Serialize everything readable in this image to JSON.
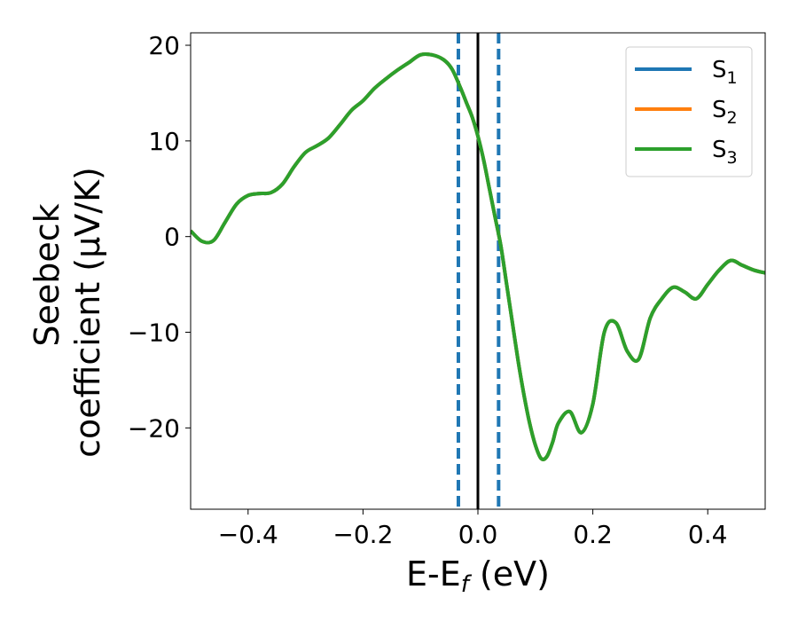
{
  "chart_data": {
    "type": "line",
    "xlabel": "E-E",
    "xlabel_sub": "f",
    "xlabel_unit": " (eV)",
    "ylabel_line1": "Seebeck",
    "ylabel_line2": "coefficient  (μV/K)",
    "xlim": [
      -0.5,
      0.5
    ],
    "ylim": [
      -28.5,
      21.3
    ],
    "xticks": [
      -0.4,
      -0.2,
      0.0,
      0.2,
      0.4
    ],
    "xtick_labels": [
      "−0.4",
      "−0.2",
      "0.0",
      "0.2",
      "0.4"
    ],
    "yticks": [
      20,
      10,
      0,
      -10,
      -20
    ],
    "ytick_labels": [
      "20",
      "10",
      "0",
      "−10",
      "−20"
    ],
    "grid": false,
    "legend_position": "top-right",
    "vertical_lines": [
      {
        "x": -0.034,
        "style": "dashed",
        "color": "#1f77b4"
      },
      {
        "x": 0.0,
        "style": "solid",
        "color": "#000000"
      },
      {
        "x": 0.036,
        "style": "dashed",
        "color": "#1f77b4"
      }
    ],
    "x": [
      -0.5,
      -0.48,
      -0.46,
      -0.44,
      -0.42,
      -0.4,
      -0.38,
      -0.36,
      -0.34,
      -0.32,
      -0.3,
      -0.28,
      -0.26,
      -0.24,
      -0.22,
      -0.2,
      -0.18,
      -0.16,
      -0.14,
      -0.12,
      -0.1,
      -0.08,
      -0.06,
      -0.045,
      -0.03,
      -0.02,
      -0.01,
      0.0,
      0.01,
      0.02,
      0.03,
      0.04,
      0.05,
      0.06,
      0.07,
      0.08,
      0.09,
      0.1,
      0.11,
      0.12,
      0.13,
      0.14,
      0.16,
      0.18,
      0.2,
      0.22,
      0.24,
      0.26,
      0.28,
      0.3,
      0.32,
      0.34,
      0.36,
      0.38,
      0.4,
      0.42,
      0.44,
      0.46,
      0.48,
      0.5
    ],
    "series": [
      {
        "name": "S",
        "name_sub": "1",
        "color": "#1f77b4",
        "values": [
          0.6,
          -0.5,
          -0.4,
          1.5,
          3.4,
          4.3,
          4.5,
          4.6,
          5.5,
          7.3,
          8.8,
          9.5,
          10.3,
          11.7,
          13.2,
          14.2,
          15.5,
          16.5,
          17.4,
          18.2,
          19.0,
          19.0,
          18.5,
          17.5,
          15.5,
          14.0,
          12.5,
          10.5,
          8.0,
          5.0,
          2.0,
          -1.0,
          -5.0,
          -9.0,
          -13.0,
          -16.5,
          -19.5,
          -21.8,
          -23.2,
          -23.0,
          -21.5,
          -19.5,
          -18.3,
          -20.5,
          -17.5,
          -10.0,
          -9.0,
          -12.0,
          -12.8,
          -8.5,
          -6.5,
          -5.3,
          -5.8,
          -6.5,
          -5.0,
          -3.5,
          -2.5,
          -3.0,
          -3.5,
          -3.8
        ]
      },
      {
        "name": "S",
        "name_sub": "2",
        "color": "#ff7f0e",
        "values": [
          0.6,
          -0.5,
          -0.4,
          1.5,
          3.4,
          4.3,
          4.5,
          4.6,
          5.5,
          7.3,
          8.8,
          9.5,
          10.3,
          11.7,
          13.2,
          14.2,
          15.5,
          16.5,
          17.4,
          18.2,
          19.0,
          19.0,
          18.5,
          17.5,
          15.5,
          14.0,
          12.5,
          10.5,
          8.0,
          5.0,
          2.0,
          -1.0,
          -5.0,
          -9.0,
          -13.0,
          -16.5,
          -19.5,
          -21.8,
          -23.2,
          -23.0,
          -21.5,
          -19.5,
          -18.3,
          -20.5,
          -17.5,
          -10.0,
          -9.0,
          -12.0,
          -12.8,
          -8.5,
          -6.5,
          -5.3,
          -5.8,
          -6.5,
          -5.0,
          -3.5,
          -2.5,
          -3.0,
          -3.5,
          -3.8
        ]
      },
      {
        "name": "S",
        "name_sub": "3",
        "color": "#2ca02c",
        "values": [
          0.6,
          -0.5,
          -0.4,
          1.5,
          3.4,
          4.3,
          4.5,
          4.6,
          5.5,
          7.3,
          8.8,
          9.5,
          10.3,
          11.7,
          13.2,
          14.2,
          15.5,
          16.5,
          17.4,
          18.2,
          19.0,
          19.0,
          18.5,
          17.5,
          15.5,
          14.0,
          12.5,
          10.5,
          8.0,
          5.0,
          2.0,
          -1.0,
          -5.0,
          -9.0,
          -13.0,
          -16.5,
          -19.5,
          -21.8,
          -23.2,
          -23.0,
          -21.5,
          -19.5,
          -18.3,
          -20.5,
          -17.5,
          -10.0,
          -9.0,
          -12.0,
          -12.8,
          -8.5,
          -6.5,
          -5.3,
          -5.8,
          -6.5,
          -5.0,
          -3.5,
          -2.5,
          -3.0,
          -3.5,
          -3.8
        ]
      }
    ]
  }
}
